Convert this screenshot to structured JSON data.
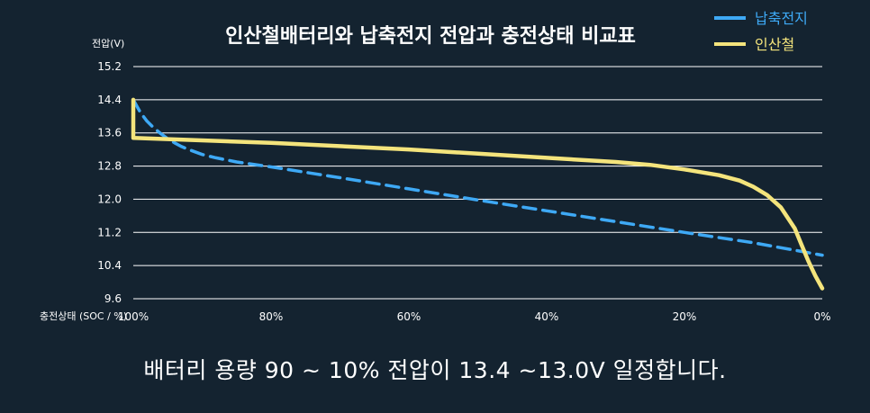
{
  "chart_data": {
    "type": "line",
    "title": "인산철배터리와 납축전지 전압과 충전상태 비교표",
    "ylabel": "전압(V)",
    "xlabel": "충전상태 (SOC / %)",
    "ylim": [
      9.6,
      15.2
    ],
    "xlim": [
      100,
      0
    ],
    "y_ticks": [
      "15.2",
      "14.4",
      "13.6",
      "12.8",
      "12.0",
      "11.2",
      "10.4",
      "9.6"
    ],
    "x_ticks": [
      "100%",
      "80%",
      "60%",
      "40%",
      "20%",
      "0%"
    ],
    "grid": true,
    "legend_position": "top-right",
    "series": [
      {
        "name": "납축전지",
        "color": "#3ea9f5",
        "style": "dashed",
        "x": [
          100,
          99,
          98,
          97,
          96,
          95,
          94,
          93,
          92,
          90,
          88,
          85,
          80,
          70,
          60,
          50,
          40,
          30,
          20,
          10,
          0
        ],
        "y": [
          14.4,
          14.1,
          13.88,
          13.72,
          13.58,
          13.46,
          13.36,
          13.27,
          13.2,
          13.08,
          13.0,
          12.9,
          12.78,
          12.52,
          12.25,
          11.98,
          11.72,
          11.46,
          11.2,
          10.95,
          10.65
        ]
      },
      {
        "name": "인산철",
        "color": "#f4e47c",
        "style": "solid",
        "x": [
          100,
          100,
          100,
          80,
          60,
          40,
          30,
          25,
          20,
          15,
          12,
          10,
          8,
          6,
          4,
          3,
          2,
          1,
          0
        ],
        "y": [
          14.4,
          13.7,
          13.48,
          13.36,
          13.2,
          13.0,
          12.9,
          12.83,
          12.72,
          12.58,
          12.45,
          12.3,
          12.1,
          11.8,
          11.3,
          10.9,
          10.5,
          10.15,
          9.85
        ]
      }
    ]
  },
  "caption": "배터리 용량 90 ~ 10% 전압이 13.4 ~13.0V 일정합니다."
}
